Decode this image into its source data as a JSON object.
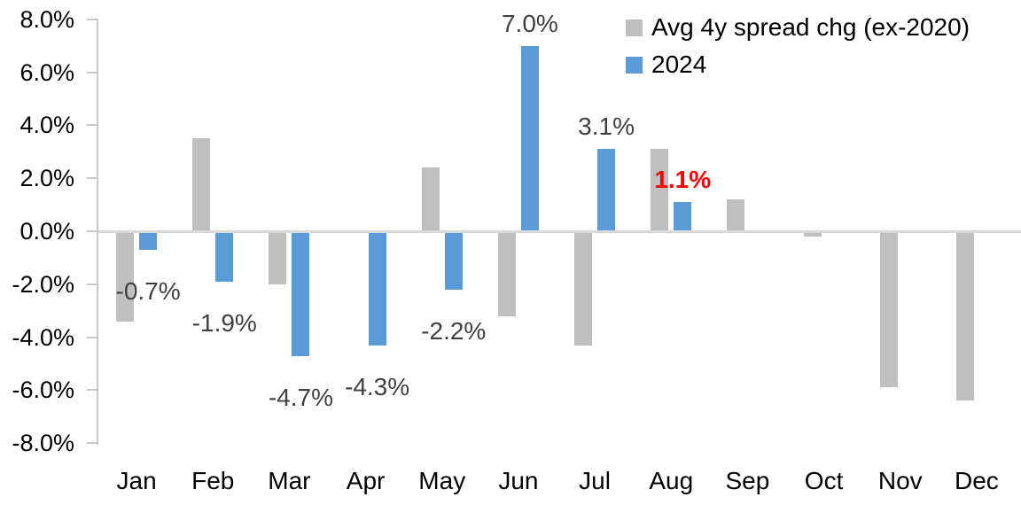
{
  "chart_data": {
    "type": "bar",
    "title": "",
    "categories": [
      "Jan",
      "Feb",
      "Mar",
      "Apr",
      "May",
      "Jun",
      "Jul",
      "Aug",
      "Sep",
      "Oct",
      "Nov",
      "Dec"
    ],
    "series": [
      {
        "name": "Avg 4y spread chg (ex-2020)",
        "color": "#bfbfbf",
        "values": [
          -3.4,
          3.5,
          -2.0,
          0.0,
          2.4,
          -3.2,
          -4.3,
          3.1,
          1.2,
          -0.2,
          -5.9,
          -6.4
        ]
      },
      {
        "name": "2024",
        "color": "#5b9bd5",
        "values": [
          -0.7,
          -1.9,
          -4.7,
          -4.3,
          -2.2,
          7.0,
          3.1,
          1.1,
          null,
          null,
          null,
          null
        ],
        "data_labels": [
          {
            "text": "-0.7%",
            "color": "#404040",
            "bold": false
          },
          {
            "text": "-1.9%",
            "color": "#404040",
            "bold": false
          },
          {
            "text": "-4.7%",
            "color": "#404040",
            "bold": false
          },
          {
            "text": "-4.3%",
            "color": "#404040",
            "bold": false
          },
          {
            "text": "-2.2%",
            "color": "#404040",
            "bold": false
          },
          {
            "text": "7.0%",
            "color": "#404040",
            "bold": false
          },
          {
            "text": "3.1%",
            "color": "#404040",
            "bold": false
          },
          {
            "text": "1.1%",
            "color": "#ff0000",
            "bold": true
          },
          null,
          null,
          null,
          null
        ]
      }
    ],
    "y_axis": {
      "unit": "%",
      "min": -8,
      "max": 8,
      "ticks": [
        {
          "label": "8.0%",
          "value": 8
        },
        {
          "label": "6.0%",
          "value": 6
        },
        {
          "label": "4.0%",
          "value": 4
        },
        {
          "label": "2.0%",
          "value": 2
        },
        {
          "label": "0.0%",
          "value": 0
        },
        {
          "label": "-2.0%",
          "value": -2
        },
        {
          "label": "-4.0%",
          "value": -4
        },
        {
          "label": "-6.0%",
          "value": -6
        },
        {
          "label": "-8.0%",
          "value": -8
        }
      ]
    },
    "legend_position": "top-right",
    "grid": false,
    "colors": {
      "axis_line": "#c9c9c9",
      "zero_line": "#d9d9d9",
      "axis_text": "#000000",
      "data_label": "#404040",
      "highlight_label": "#ff0000"
    }
  }
}
